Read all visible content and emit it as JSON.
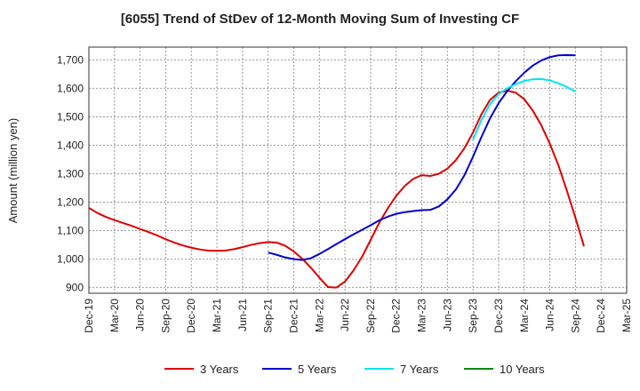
{
  "chart_data": {
    "type": "line",
    "title": "[6055]  Trend of StDev of 12-Month Moving Sum of Investing CF",
    "xlabel": "",
    "ylabel": "Amount (million yen)",
    "ylim": [
      880,
      1745
    ],
    "yticks": [
      900,
      1000,
      1100,
      1200,
      1300,
      1400,
      1500,
      1600,
      1700
    ],
    "ytick_labels": [
      "900",
      "1,000",
      "1,100",
      "1,200",
      "1,300",
      "1,400",
      "1,500",
      "1,600",
      "1,700"
    ],
    "xtick_labels": [
      "Dec-19",
      "Mar-20",
      "Jun-20",
      "Sep-20",
      "Dec-20",
      "Mar-21",
      "Jun-21",
      "Sep-21",
      "Dec-21",
      "Mar-22",
      "Jun-22",
      "Sep-22",
      "Dec-22",
      "Mar-23",
      "Jun-23",
      "Sep-23",
      "Dec-23",
      "Mar-24",
      "Jun-24",
      "Sep-24",
      "Dec-24",
      "Mar-25"
    ],
    "grid": true,
    "legend_position": "bottom",
    "series": [
      {
        "name": "3 Years",
        "color": "#dd0000",
        "start": "Dec-19",
        "values": [
          1180,
          1162,
          1148,
          1137,
          1127,
          1117,
          1106,
          1095,
          1083,
          1070,
          1058,
          1048,
          1040,
          1034,
          1030,
          1029,
          1030,
          1035,
          1042,
          1050,
          1056,
          1060,
          1058,
          1047,
          1027,
          1001,
          970,
          935,
          902,
          900,
          921,
          960,
          1008,
          1067,
          1127,
          1178,
          1222,
          1257,
          1282,
          1295,
          1292,
          1300,
          1318,
          1348,
          1390,
          1445,
          1510,
          1560,
          1585,
          1592,
          1585,
          1562,
          1522,
          1470,
          1405,
          1330,
          1240,
          1145,
          1045
        ]
      },
      {
        "name": "5 Years",
        "color": "#0000cc",
        "start": "Sep-21",
        "values": [
          1023,
          1015,
          1006,
          1000,
          997,
          1003,
          1018,
          1035,
          1053,
          1070,
          1087,
          1103,
          1119,
          1136,
          1149,
          1159,
          1165,
          1169,
          1172,
          1173,
          1185,
          1210,
          1245,
          1295,
          1360,
          1430,
          1495,
          1548,
          1590,
          1625,
          1655,
          1680,
          1698,
          1710,
          1716,
          1717,
          1716
        ]
      },
      {
        "name": "7 Years",
        "color": "#00e5ee",
        "start": "Sep-23",
        "values": [
          1420,
          1490,
          1545,
          1580,
          1600,
          1615,
          1626,
          1632,
          1633,
          1628,
          1618,
          1605,
          1588
        ]
      },
      {
        "name": "10 Years",
        "color": "#008800",
        "start": "Sep-23",
        "values": []
      }
    ]
  }
}
